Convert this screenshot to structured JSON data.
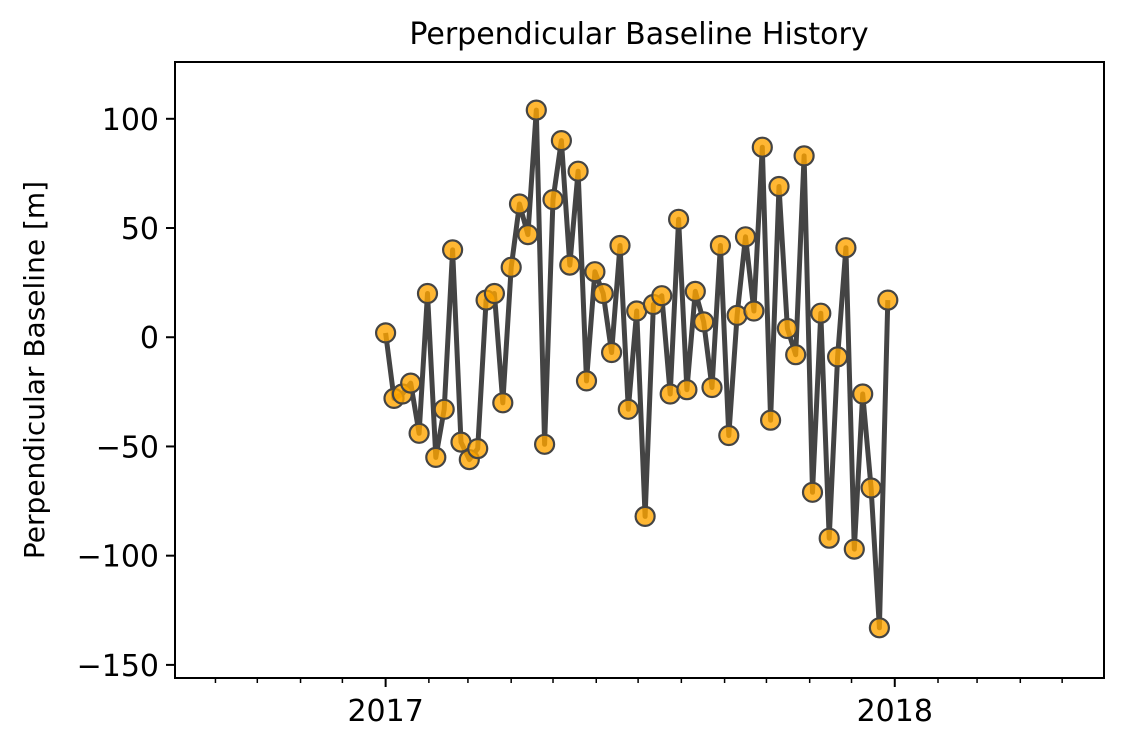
{
  "chart_data": {
    "type": "line",
    "title": "Perpendicular Baseline History",
    "xlabel": "",
    "ylabel": "Perpendicular Baseline [m]",
    "x_tick_labels": [
      {
        "label": "2017",
        "date": "2017-01-01"
      },
      {
        "label": "2018",
        "date": "2018-01-01"
      }
    ],
    "xlim": [
      "2016-08-03",
      "2018-05-31"
    ],
    "ylim": [
      -156,
      126
    ],
    "y_ticks": [
      100,
      50,
      0,
      -50,
      -100,
      -150
    ],
    "y_tick_labels": [
      "100",
      "50",
      "0",
      "−50",
      "−100",
      "−150"
    ],
    "grid": false,
    "colors": {
      "line": "#444444",
      "marker_fill": "#FFA500",
      "marker_edge": "#444444"
    },
    "series": [
      {
        "x": [
          "2017-01-01",
          "2017-01-07",
          "2017-01-13",
          "2017-01-19",
          "2017-01-25",
          "2017-01-31",
          "2017-02-06",
          "2017-02-12",
          "2017-02-18",
          "2017-02-24",
          "2017-03-02",
          "2017-03-08",
          "2017-03-14",
          "2017-03-20",
          "2017-03-26",
          "2017-04-01",
          "2017-04-07",
          "2017-04-13",
          "2017-04-19",
          "2017-04-25",
          "2017-05-01",
          "2017-05-07",
          "2017-05-13",
          "2017-05-19",
          "2017-05-25",
          "2017-05-31",
          "2017-06-06",
          "2017-06-12",
          "2017-06-18",
          "2017-06-24",
          "2017-06-30",
          "2017-07-06",
          "2017-07-12",
          "2017-07-18",
          "2017-07-24",
          "2017-07-30",
          "2017-08-05",
          "2017-08-11",
          "2017-08-17",
          "2017-08-23",
          "2017-08-29",
          "2017-09-04",
          "2017-09-10",
          "2017-09-16",
          "2017-09-22",
          "2017-09-28",
          "2017-10-04",
          "2017-10-10",
          "2017-10-16",
          "2017-10-22",
          "2017-10-28",
          "2017-11-03",
          "2017-11-09",
          "2017-11-15",
          "2017-11-21",
          "2017-11-27",
          "2017-12-03",
          "2017-12-09",
          "2017-12-15",
          "2017-12-21",
          "2017-12-27"
        ],
        "values": [
          2,
          -28,
          -26,
          -21,
          -44,
          20,
          -55,
          -33,
          40,
          -48,
          -56,
          -51,
          17,
          20,
          -30,
          32,
          61,
          47,
          104,
          -49,
          63,
          90,
          33,
          76,
          -20,
          30,
          20,
          -7,
          42,
          -33,
          12,
          -82,
          15,
          19,
          -26,
          54,
          -24,
          21,
          7,
          -23,
          42,
          -45,
          10,
          46,
          12,
          87,
          -38,
          69,
          4,
          -8,
          83,
          -71,
          11,
          -92,
          -9,
          41,
          -97,
          -26,
          -69,
          -133,
          17
        ]
      }
    ]
  }
}
